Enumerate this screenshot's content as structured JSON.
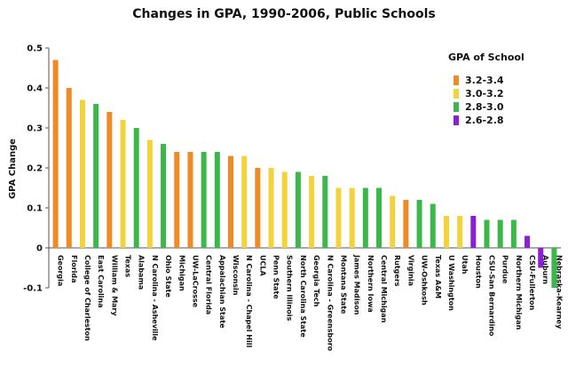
{
  "chart_data": {
    "type": "bar",
    "title": "Changes in GPA, 1990-2006, Public Schools",
    "xlabel": "",
    "ylabel": "GPA Change",
    "ylim": [
      -0.1,
      0.5
    ],
    "yticks": [
      "0.5",
      "0.4",
      "0.3",
      "0.2",
      "0.1",
      "0",
      "-0.1"
    ],
    "grid": false,
    "legend_position": "top-right",
    "legend_title": "GPA of School",
    "legend": [
      {
        "label": "3.2-3.4",
        "color": "#F08A24"
      },
      {
        "label": "3.0-3.2",
        "color": "#F2D33C"
      },
      {
        "label": "2.8-3.0",
        "color": "#3CB84A"
      },
      {
        "label": "2.6-2.8",
        "color": "#8A1FD6"
      }
    ],
    "categories": [
      "Georgia",
      "Florida",
      "College of Charleston",
      "East Carolina",
      "William & Mary",
      "Texas",
      "Alabama",
      "N Carolina - Asheville",
      "Ohio State",
      "Michigan",
      "UW-LaCrosse",
      "Central Florida",
      "Appalachian State",
      "Wisconsin",
      "N Carolina - Chapel Hill",
      "UCLA",
      "Penn State",
      "Southern Illinois",
      "North Carolina State",
      "Georgia Tech",
      "N Carolina - Greensboro",
      "Montana State",
      "James Madison",
      "Northern Iowa",
      "Central Michigan",
      "Rutgers",
      "Virginia",
      "UW-Oshkosh",
      "Texas A&M",
      "U Washington",
      "Utah",
      "Houston",
      "CSU-San Bernardino",
      "Purdue",
      "Northern Michigan",
      "CSU-Fullerton",
      "Auburn",
      "Nebraska-Kearney"
    ],
    "values": [
      0.47,
      0.4,
      0.37,
      0.36,
      0.34,
      0.32,
      0.3,
      0.27,
      0.26,
      0.24,
      0.24,
      0.24,
      0.24,
      0.23,
      0.23,
      0.2,
      0.2,
      0.19,
      0.19,
      0.18,
      0.18,
      0.15,
      0.15,
      0.15,
      0.15,
      0.13,
      0.12,
      0.12,
      0.11,
      0.08,
      0.08,
      0.08,
      0.07,
      0.07,
      0.07,
      0.03,
      -0.05,
      -0.1
    ],
    "groups": [
      "3.2-3.4",
      "3.2-3.4",
      "3.0-3.2",
      "2.8-3.0",
      "3.2-3.4",
      "3.0-3.2",
      "2.8-3.0",
      "3.0-3.2",
      "2.8-3.0",
      "3.2-3.4",
      "3.2-3.4",
      "2.8-3.0",
      "2.8-3.0",
      "3.2-3.4",
      "3.0-3.2",
      "3.2-3.4",
      "3.0-3.2",
      "3.0-3.2",
      "2.8-3.0",
      "3.0-3.2",
      "2.8-3.0",
      "3.0-3.2",
      "3.0-3.2",
      "2.8-3.0",
      "2.8-3.0",
      "3.0-3.2",
      "3.2-3.4",
      "2.8-3.0",
      "2.8-3.0",
      "3.0-3.2",
      "3.0-3.2",
      "2.6-2.8",
      "2.8-3.0",
      "2.8-3.0",
      "2.8-3.0",
      "2.6-2.8",
      "2.6-2.8",
      "2.8-3.0"
    ]
  }
}
